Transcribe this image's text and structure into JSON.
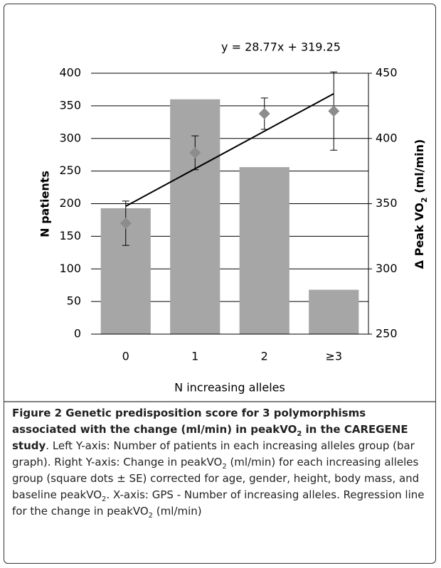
{
  "chart_data": {
    "type": "bar",
    "annotation": "y = 28.77x + 319.25",
    "trendline": {
      "slope": 28.77,
      "intercept": 319.25
    },
    "categories": [
      "0",
      "1",
      "2",
      "≥3"
    ],
    "xlabel": "N increasing alleles",
    "ylabel": "N patients",
    "y2label": [
      "Δ Peak VO",
      "2",
      " (ml/min)"
    ],
    "ylim": [
      0,
      400
    ],
    "yticks": [
      0,
      50,
      100,
      150,
      200,
      250,
      300,
      350,
      400
    ],
    "y2lim": [
      250,
      450
    ],
    "y2ticks": [
      250,
      300,
      350,
      400,
      450
    ],
    "grid": true,
    "series": [
      {
        "type": "bar",
        "color": "#a6a6a6",
        "values": [
          193,
          360,
          256,
          68
        ]
      },
      {
        "type": "scatter",
        "axis": "y2",
        "color": "#8c8c8c",
        "values": [
          335,
          389,
          419,
          421
        ],
        "errors": [
          17,
          13,
          12,
          30
        ]
      }
    ]
  },
  "caption": [
    {
      "text": "Figure 2 Genetic predisposition score for 3 polymorphisms associated with the change (ml/min) in peakVO",
      "style": "bold"
    },
    {
      "text": "2",
      "style": "bold-sub"
    },
    {
      "text": " in the CAREGENE study",
      "style": "bold"
    },
    {
      "text": ". Left Y-axis: Number of patients in each increasing alleles group (bar graph). Right Y-axis: Change in peakVO",
      "style": "normal"
    },
    {
      "text": "2",
      "style": "sub"
    },
    {
      "text": " (ml/min) for each increasing alleles group (square dots ± SE) corrected for age, gender, height, body mass, and baseline peakVO",
      "style": "normal"
    },
    {
      "text": "2",
      "style": "sub"
    },
    {
      "text": ". X-axis: GPS - Number of increasing alleles. Regression line for the change in peakVO",
      "style": "normal"
    },
    {
      "text": "2",
      "style": "sub"
    },
    {
      "text": " (ml/min)",
      "style": "normal"
    }
  ]
}
